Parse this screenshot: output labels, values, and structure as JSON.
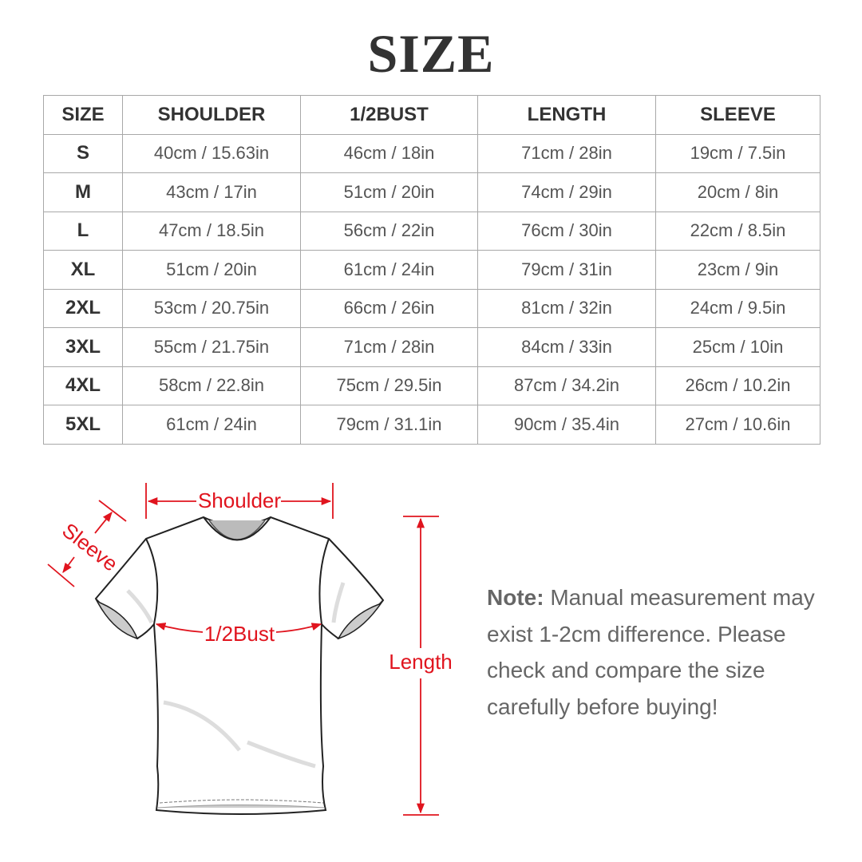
{
  "title": "SIZE",
  "table": {
    "headers": [
      "SIZE",
      "SHOULDER",
      "1/2BUST",
      "LENGTH",
      "SLEEVE"
    ],
    "rows": [
      [
        "S",
        "40cm / 15.63in",
        "46cm / 18in",
        "71cm / 28in",
        "19cm / 7.5in"
      ],
      [
        "M",
        "43cm / 17in",
        "51cm / 20in",
        "74cm / 29in",
        "20cm / 8in"
      ],
      [
        "L",
        "47cm / 18.5in",
        "56cm / 22in",
        "76cm / 30in",
        "22cm / 8.5in"
      ],
      [
        "XL",
        "51cm / 20in",
        "61cm / 24in",
        "79cm / 31in",
        "23cm / 9in"
      ],
      [
        "2XL",
        "53cm / 20.75in",
        "66cm / 26in",
        "81cm / 32in",
        "24cm / 9.5in"
      ],
      [
        "3XL",
        "55cm / 21.75in",
        "71cm / 28in",
        "84cm / 33in",
        "25cm / 10in"
      ],
      [
        "4XL",
        "58cm / 22.8in",
        "75cm / 29.5in",
        "87cm / 34.2in",
        "26cm / 10.2in"
      ],
      [
        "5XL",
        "61cm / 24in",
        "79cm / 31.1in",
        "90cm / 35.4in",
        "27cm / 10.6in"
      ]
    ]
  },
  "diagram": {
    "labels": {
      "shoulder": "Shoulder",
      "sleeve": "Sleeve",
      "bust": "1/2Bust",
      "length": "Length"
    },
    "accent_color": "#e0141e"
  },
  "note": {
    "label": "Note:",
    "text": " Manual measurement may exist 1-2cm difference. Please check and compare the size carefully before buying!"
  }
}
